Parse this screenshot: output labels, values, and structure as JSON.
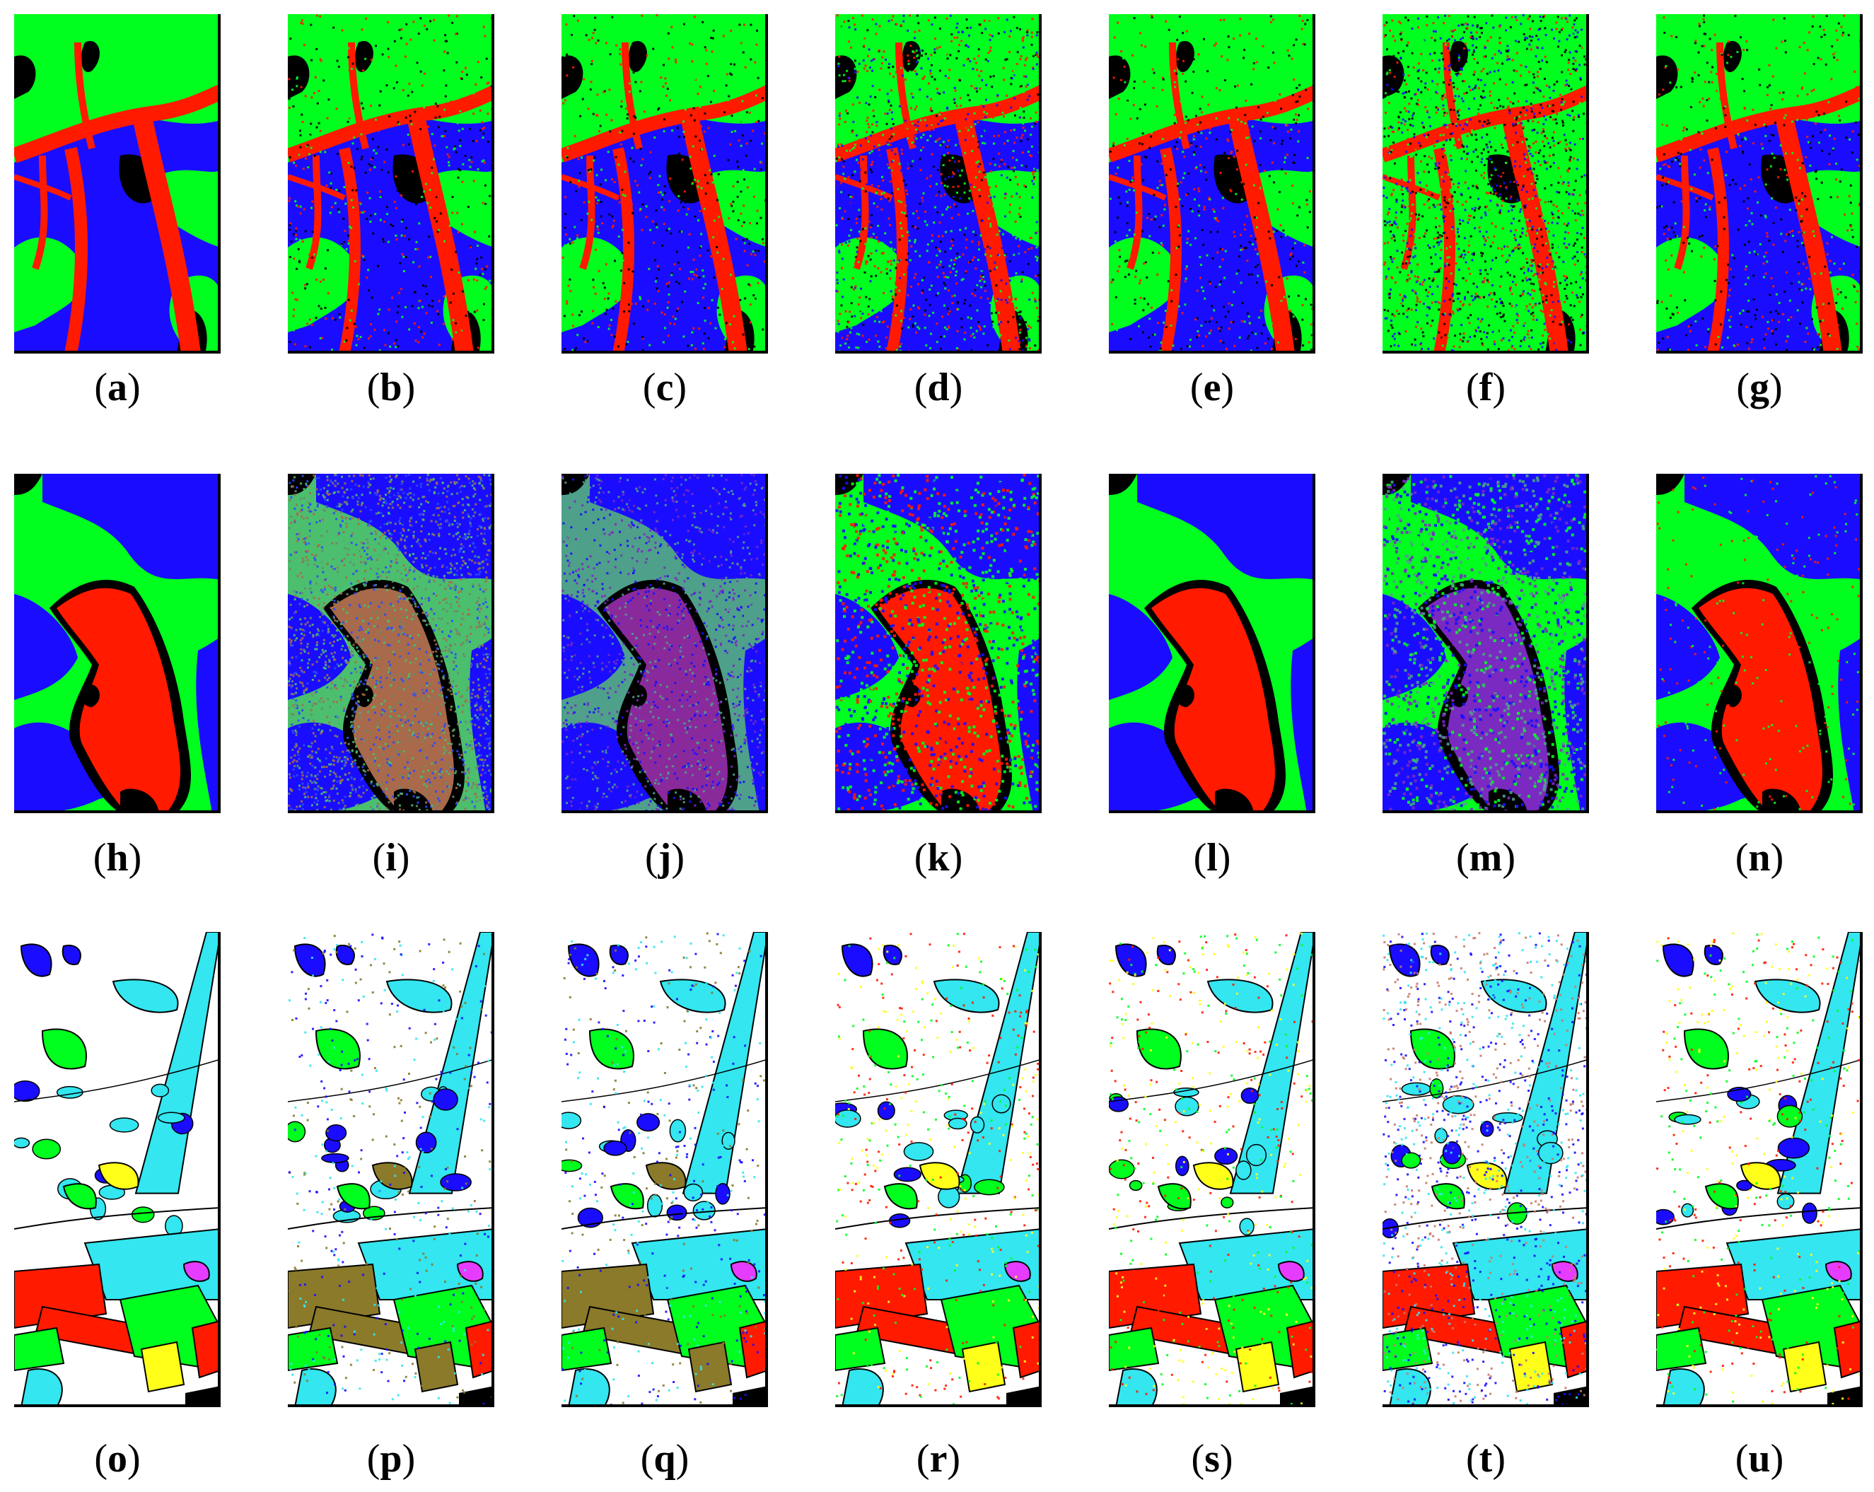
{
  "rows": [
    {
      "type": "forest",
      "panels": [
        {
          "label": "a",
          "style": "clean"
        },
        {
          "label": "b",
          "style": "edges"
        },
        {
          "label": "c",
          "style": "edges"
        },
        {
          "label": "d",
          "style": "noisy"
        },
        {
          "label": "e",
          "style": "edges"
        },
        {
          "label": "f",
          "style": "veryNoisy"
        },
        {
          "label": "g",
          "style": "edges"
        }
      ]
    },
    {
      "type": "blob",
      "panels": [
        {
          "label": "h",
          "style": "clean"
        },
        {
          "label": "i",
          "style": "haze"
        },
        {
          "label": "j",
          "style": "purple"
        },
        {
          "label": "k",
          "style": "speckle"
        },
        {
          "label": "l",
          "style": "clean"
        },
        {
          "label": "m",
          "style": "purpleSpeckle"
        },
        {
          "label": "n",
          "style": "slight"
        }
      ]
    },
    {
      "type": "field",
      "panels": [
        {
          "label": "o",
          "style": "yellow"
        },
        {
          "label": "p",
          "style": "olive"
        },
        {
          "label": "q",
          "style": "olive"
        },
        {
          "label": "r",
          "style": "mixed"
        },
        {
          "label": "s",
          "style": "mixed"
        },
        {
          "label": "t",
          "style": "speckleBlue"
        },
        {
          "label": "u",
          "style": "mixed"
        }
      ]
    }
  ],
  "colors": {
    "green": "#00ff1e",
    "red": "#ff1a00",
    "blue": "#1a0dff",
    "black": "#000000",
    "cyan": "#33e6f0",
    "yellow": "#ffff1a",
    "olive": "#8a7a2a",
    "magenta": "#e63cff",
    "white": "#ffffff"
  }
}
